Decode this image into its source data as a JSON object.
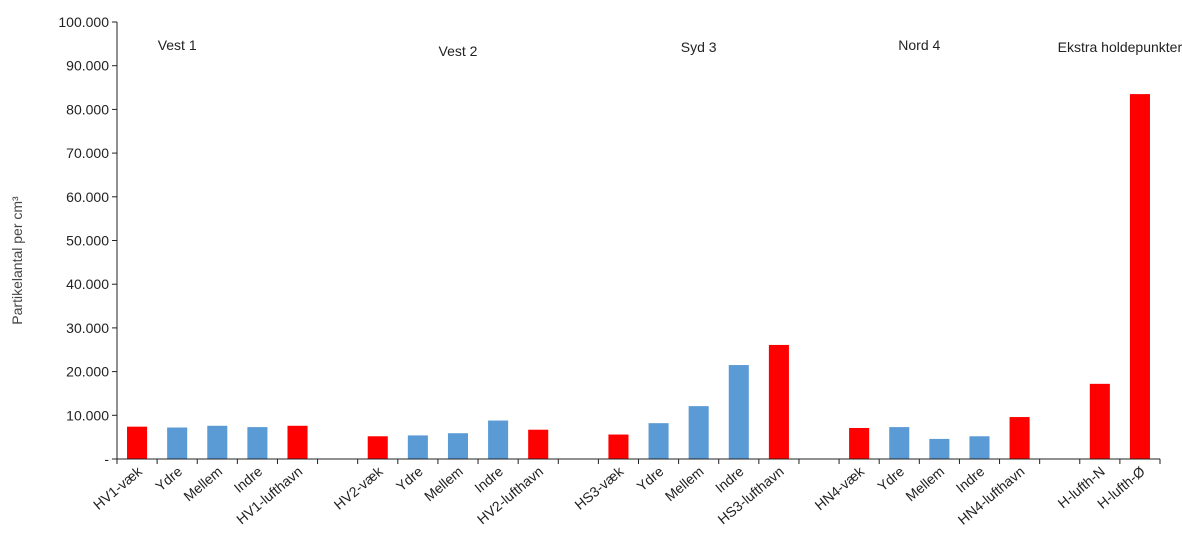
{
  "chart_data": {
    "type": "bar",
    "title": "",
    "ylabel": "Partikelantal per cm³",
    "xlabel": "",
    "ylim": [
      0,
      100000
    ],
    "yticks": [
      {
        "value": 0,
        "label": "-"
      },
      {
        "value": 10000,
        "label": "10.000"
      },
      {
        "value": 20000,
        "label": "20.000"
      },
      {
        "value": 30000,
        "label": "30.000"
      },
      {
        "value": 40000,
        "label": "40.000"
      },
      {
        "value": 50000,
        "label": "50.000"
      },
      {
        "value": 60000,
        "label": "60.000"
      },
      {
        "value": 70000,
        "label": "70.000"
      },
      {
        "value": 80000,
        "label": "80.000"
      },
      {
        "value": 90000,
        "label": "90.000"
      },
      {
        "value": 100000,
        "label": "100.000"
      }
    ],
    "grid": false,
    "legend": "none",
    "colors": {
      "red": "#ff0000",
      "blue": "#5b9bd5"
    },
    "categories": [
      "HV1-væk",
      "Ydre",
      "Mellem",
      "Indre",
      "HV1-lufthavn",
      "",
      "HV2-væk",
      "Ydre",
      "Mellem",
      "Indre",
      "HV2-lufthavn",
      "",
      "HS3-væk",
      "Ydre",
      "Mellem",
      "Indre",
      "HS3-lufthavn",
      "",
      "HN4-væk",
      "Ydre",
      "Mellem",
      "Indre",
      "HN4-lufthavn",
      "",
      "H-lufth-N",
      "H-lufth-Ø"
    ],
    "values": [
      7400,
      7200,
      7600,
      7300,
      7600,
      null,
      5200,
      5400,
      5900,
      8800,
      6700,
      null,
      5600,
      8200,
      12100,
      21500,
      26100,
      null,
      7100,
      7300,
      4600,
      5200,
      9600,
      null,
      17200,
      83500
    ],
    "bar_colors": [
      "red",
      "blue",
      "blue",
      "blue",
      "red",
      null,
      "red",
      "blue",
      "blue",
      "blue",
      "red",
      null,
      "red",
      "blue",
      "blue",
      "blue",
      "red",
      null,
      "red",
      "blue",
      "blue",
      "blue",
      "red",
      null,
      "red",
      "red"
    ],
    "annotations": [
      {
        "text": "Vest 1",
        "at_category": 1
      },
      {
        "text": "Vest 2",
        "at_category": 8
      },
      {
        "text": "Syd 3",
        "at_category": 14
      },
      {
        "text": "Nord 4",
        "at_category": 19.5
      },
      {
        "text": "Ekstra holdepunkter",
        "at_category": 24.5
      }
    ]
  }
}
